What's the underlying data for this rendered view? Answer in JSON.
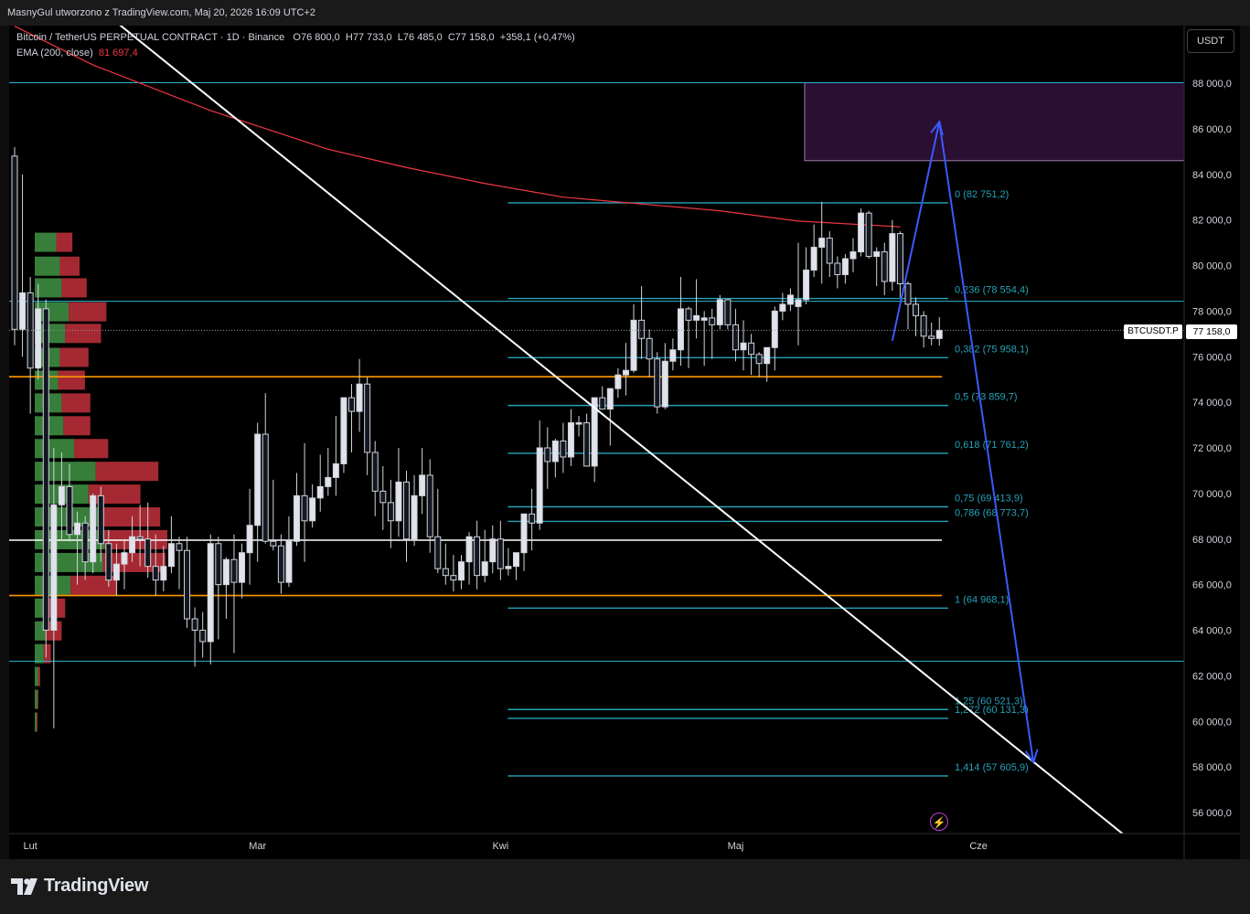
{
  "header": {
    "caption": "MasnyGul utworzono z TradingView.com, Maj 20, 2026 16:09 UTC+2"
  },
  "legend": {
    "symbol": "Bitcoin / TetherUS PERPETUAL CONTRACT · 1D · Binance",
    "open": "O76 800,0",
    "high": "H77 733,0",
    "low": "L76 485,0",
    "close": "C77 158,0",
    "change": "+358,1 (+0,47%)",
    "ema_label": "EMA (200, close)",
    "ema_value": "81 697,4"
  },
  "currency_button": "USDT",
  "last_price": {
    "label": "BTCUSDT.P",
    "value": "77 158,0"
  },
  "footer": {
    "logo_text": "TradingView"
  },
  "colors": {
    "bull": "#e0e3eb",
    "bear": "#131722",
    "ema": "#f23645",
    "fib": "#26a2b8",
    "trend": "#ffffff",
    "horizontal_orange": "#ff9800",
    "horizontal_cyan": "#2bb7d1",
    "projection": "#3a5bff",
    "zone_fill": "#2a0f33",
    "vp_up": "#4caf50",
    "vp_down": "#e53945"
  },
  "chart_data": {
    "type": "candlestick",
    "symbol": "BTCUSDT.P",
    "timeframe": "1D",
    "ylim": [
      55000,
      89500
    ],
    "y_ticks": [
      {
        "v": 88000,
        "t": "88 000,0"
      },
      {
        "v": 86000,
        "t": "86 000,0"
      },
      {
        "v": 84000,
        "t": "84 000,0"
      },
      {
        "v": 82000,
        "t": "82 000,0"
      },
      {
        "v": 80000,
        "t": "80 000,0"
      },
      {
        "v": 78000,
        "t": "78 000,0"
      },
      {
        "v": 76000,
        "t": "76 000,0"
      },
      {
        "v": 74000,
        "t": "74 000,0"
      },
      {
        "v": 72000,
        "t": "72 000,0"
      },
      {
        "v": 70000,
        "t": "70 000,0"
      },
      {
        "v": 68000,
        "t": "68 000,0"
      },
      {
        "v": 66000,
        "t": "66 000,0"
      },
      {
        "v": 64000,
        "t": "64 000,0"
      },
      {
        "v": 62000,
        "t": "62 000,0"
      },
      {
        "v": 60000,
        "t": "60 000,0"
      },
      {
        "v": 58000,
        "t": "58 000,0"
      },
      {
        "v": 56000,
        "t": "56 000,0"
      }
    ],
    "x_ticks": [
      {
        "i": 2,
        "t": "Lut"
      },
      {
        "i": 31,
        "t": "Mar"
      },
      {
        "i": 62,
        "t": "Kwi"
      },
      {
        "i": 92,
        "t": "Maj"
      },
      {
        "i": 123,
        "t": "Cze"
      }
    ],
    "candles": [
      [
        84800,
        85200,
        76500,
        77200
      ],
      [
        77200,
        84000,
        76000,
        78800
      ],
      [
        78800,
        79500,
        73500,
        75500
      ],
      [
        75500,
        79200,
        75000,
        78100
      ],
      [
        78100,
        78500,
        62800,
        64000
      ],
      [
        64000,
        72000,
        59700,
        69500
      ],
      [
        69500,
        71800,
        68000,
        70300
      ],
      [
        70300,
        71300,
        67900,
        68200
      ],
      [
        68200,
        69200,
        66000,
        68700
      ],
      [
        68700,
        69000,
        66200,
        67000
      ],
      [
        67000,
        70000,
        66500,
        69900
      ],
      [
        69900,
        70300,
        67000,
        67800
      ],
      [
        67800,
        68400,
        65900,
        66200
      ],
      [
        66200,
        67800,
        65500,
        66900
      ],
      [
        66900,
        68000,
        65800,
        67400
      ],
      [
        67400,
        69000,
        67000,
        68100
      ],
      [
        68100,
        69500,
        66800,
        68000
      ],
      [
        68000,
        69600,
        66300,
        66800
      ],
      [
        66800,
        68200,
        65500,
        66200
      ],
      [
        66200,
        67700,
        65700,
        66800
      ],
      [
        66800,
        69000,
        66500,
        67800
      ],
      [
        67800,
        68100,
        65800,
        67500
      ],
      [
        67500,
        68100,
        64100,
        64500
      ],
      [
        64500,
        65000,
        62400,
        64000
      ],
      [
        64000,
        64800,
        62800,
        63500
      ],
      [
        63500,
        68200,
        62500,
        67800
      ],
      [
        67800,
        68100,
        63600,
        66000
      ],
      [
        66000,
        67200,
        64500,
        67100
      ],
      [
        67100,
        68200,
        63000,
        66100
      ],
      [
        66100,
        67800,
        65400,
        67400
      ],
      [
        67400,
        70200,
        66000,
        68600
      ],
      [
        68600,
        73100,
        67000,
        72600
      ],
      [
        72600,
        74400,
        67800,
        67900
      ],
      [
        67900,
        70600,
        67500,
        67700
      ],
      [
        67700,
        68200,
        65600,
        66100
      ],
      [
        66100,
        69000,
        65900,
        67900
      ],
      [
        67900,
        70900,
        67700,
        69900
      ],
      [
        69900,
        72200,
        67000,
        68800
      ],
      [
        68800,
        70400,
        68500,
        69800
      ],
      [
        69800,
        71700,
        69200,
        70300
      ],
      [
        70300,
        72000,
        69900,
        70700
      ],
      [
        70700,
        73400,
        69900,
        71300
      ],
      [
        71300,
        74000,
        70900,
        74200
      ],
      [
        74200,
        74800,
        71800,
        73600
      ],
      [
        73600,
        75900,
        72700,
        74800
      ],
      [
        74800,
        75100,
        70800,
        71800
      ],
      [
        71800,
        72300,
        69000,
        70100
      ],
      [
        70100,
        71200,
        68400,
        69600
      ],
      [
        69600,
        70600,
        67600,
        68800
      ],
      [
        68800,
        72000,
        68100,
        70500
      ],
      [
        70500,
        71000,
        67000,
        68000
      ],
      [
        68000,
        70800,
        67700,
        69900
      ],
      [
        69900,
        72000,
        69100,
        70800
      ],
      [
        70800,
        71500,
        67400,
        68100
      ],
      [
        68100,
        70200,
        66500,
        66700
      ],
      [
        66700,
        67800,
        66000,
        66400
      ],
      [
        66400,
        67300,
        65700,
        66200
      ],
      [
        66200,
        67300,
        65800,
        67000
      ],
      [
        67000,
        68300,
        66000,
        68100
      ],
      [
        68100,
        68800,
        65800,
        66400
      ],
      [
        66400,
        68400,
        66100,
        67000
      ],
      [
        67000,
        68600,
        66500,
        68000
      ],
      [
        68000,
        68800,
        66200,
        66700
      ],
      [
        66700,
        67600,
        66400,
        66800
      ],
      [
        66800,
        67400,
        66200,
        67400
      ],
      [
        67400,
        69100,
        66600,
        69100
      ],
      [
        69100,
        70200,
        67500,
        68700
      ],
      [
        68700,
        73200,
        68400,
        72000
      ],
      [
        72000,
        72900,
        70200,
        71400
      ],
      [
        71400,
        72400,
        70700,
        72300
      ],
      [
        72300,
        73100,
        70900,
        71600
      ],
      [
        71600,
        73700,
        71200,
        73100
      ],
      [
        73100,
        73400,
        72500,
        73100
      ],
      [
        73100,
        73500,
        71200,
        71200
      ],
      [
        71200,
        74000,
        70500,
        74200
      ],
      [
        74200,
        74700,
        73700,
        73700
      ],
      [
        73700,
        74600,
        72100,
        74600
      ],
      [
        74600,
        75500,
        74200,
        75200
      ],
      [
        75200,
        76600,
        74300,
        75400
      ],
      [
        75400,
        78300,
        75300,
        77600
      ],
      [
        77600,
        79100,
        75900,
        76800
      ],
      [
        76800,
        77200,
        75100,
        75900
      ],
      [
        75900,
        76200,
        73500,
        73800
      ],
      [
        73800,
        76600,
        73700,
        75800
      ],
      [
        75800,
        76800,
        75400,
        76300
      ],
      [
        76300,
        79500,
        75600,
        78100
      ],
      [
        78100,
        78200,
        75500,
        77600
      ],
      [
        77600,
        79400,
        76800,
        77800
      ],
      [
        77600,
        78000,
        75600,
        77700
      ],
      [
        77700,
        78100,
        75900,
        77400
      ],
      [
        77400,
        78700,
        77200,
        78500
      ],
      [
        78500,
        78500,
        77200,
        77400
      ],
      [
        77400,
        78100,
        75800,
        76300
      ],
      [
        76300,
        77600,
        75400,
        76600
      ],
      [
        76600,
        77000,
        75200,
        76100
      ],
      [
        76100,
        76200,
        75100,
        75700
      ],
      [
        75700,
        76400,
        74900,
        76400
      ],
      [
        76400,
        78200,
        75400,
        78000
      ],
      [
        78000,
        78800,
        77600,
        78300
      ],
      [
        78300,
        79000,
        78000,
        78700
      ],
      [
        78200,
        81000,
        76500,
        78500
      ],
      [
        78500,
        80800,
        78300,
        79800
      ],
      [
        79800,
        81800,
        79500,
        80800
      ],
      [
        80800,
        82800,
        79200,
        81200
      ],
      [
        81200,
        81500,
        79500,
        80100
      ],
      [
        80100,
        80400,
        79000,
        79600
      ],
      [
        79600,
        80500,
        79200,
        80300
      ],
      [
        80300,
        81200,
        79700,
        80600
      ],
      [
        80600,
        82500,
        80400,
        82300
      ],
      [
        82300,
        82400,
        80300,
        80400
      ],
      [
        80400,
        80800,
        79100,
        80600
      ],
      [
        80600,
        81000,
        78700,
        79300
      ],
      [
        79300,
        82000,
        78900,
        81400
      ],
      [
        81400,
        81500,
        78600,
        79200
      ],
      [
        79200,
        79300,
        77200,
        78300
      ],
      [
        78300,
        78600,
        76900,
        77800
      ],
      [
        77800,
        78000,
        76400,
        76900
      ],
      [
        76900,
        77500,
        76500,
        76800
      ],
      [
        76800,
        77733,
        76485,
        77158
      ]
    ],
    "ema200": [
      [
        0,
        90500
      ],
      [
        10,
        88800
      ],
      [
        25,
        86800
      ],
      [
        40,
        85100
      ],
      [
        50,
        84300
      ],
      [
        60,
        83600
      ],
      [
        70,
        83000
      ],
      [
        80,
        82700
      ],
      [
        90,
        82400
      ],
      [
        100,
        81950
      ],
      [
        113,
        81697.4
      ]
    ],
    "fibonacci": [
      {
        "label": "0 (82 751,2)",
        "price": 82751.2
      },
      {
        "label": "0,236 (78 554,4)",
        "price": 78554.4
      },
      {
        "label": "0,382 (75 958,1)",
        "price": 75958.1
      },
      {
        "label": "0,5 (73 859,7)",
        "price": 73859.7
      },
      {
        "label": "0,618 (71 761,2)",
        "price": 71761.2
      },
      {
        "label": "0,75 (69 413,9)",
        "price": 69413.9
      },
      {
        "label": "0,786 (68 773,7)",
        "price": 68773.7
      },
      {
        "label": "1 (64 968,1)",
        "price": 64968.1
      },
      {
        "label": "1,25 (60 521,3)",
        "price": 60521.3
      },
      {
        "label": "1,272 (60 131,3)",
        "price": 60131.3
      },
      {
        "label": "1,414 (57 605,9)",
        "price": 57605.9
      }
    ],
    "horizontal_levels": [
      {
        "price": 88020,
        "color": "cyan",
        "span": "full"
      },
      {
        "price": 78430,
        "color": "cyan",
        "span": "full"
      },
      {
        "price": 75120,
        "color": "orange",
        "span": "to-fib"
      },
      {
        "price": 67950,
        "color": "white",
        "span": "to-fib"
      },
      {
        "price": 65520,
        "color": "orange",
        "span": "to-fib"
      },
      {
        "price": 62640,
        "color": "cyan",
        "span": "full"
      }
    ],
    "supply_zone": {
      "price_top": 88020,
      "price_bottom": 84600
    },
    "trendline": {
      "start": {
        "i": 1,
        "price": 94000
      },
      "end": {
        "i": 142,
        "price": 54900
      }
    },
    "projection": [
      {
        "i": 112,
        "price": 76700
      },
      {
        "i": 118,
        "price": 86300
      },
      {
        "i": 130,
        "price": 58200
      }
    ],
    "volume_profile": [
      {
        "price": 81000,
        "up": 24,
        "down": 18
      },
      {
        "price": 79950,
        "up": 28,
        "down": 22
      },
      {
        "price": 79000,
        "up": 30,
        "down": 28
      },
      {
        "price": 77950,
        "up": 38,
        "down": 42
      },
      {
        "price": 77000,
        "up": 34,
        "down": 40
      },
      {
        "price": 75950,
        "up": 28,
        "down": 32
      },
      {
        "price": 74950,
        "up": 26,
        "down": 30
      },
      {
        "price": 73950,
        "up": 30,
        "down": 32
      },
      {
        "price": 72950,
        "up": 32,
        "down": 30
      },
      {
        "price": 71950,
        "up": 44,
        "down": 38
      },
      {
        "price": 70950,
        "up": 68,
        "down": 70
      },
      {
        "price": 69950,
        "up": 60,
        "down": 58
      },
      {
        "price": 68950,
        "up": 74,
        "down": 66
      },
      {
        "price": 67950,
        "up": 78,
        "down": 70
      },
      {
        "price": 66950,
        "up": 76,
        "down": 70
      },
      {
        "price": 65950,
        "up": 40,
        "down": 52
      },
      {
        "price": 64950,
        "up": 14,
        "down": 20
      },
      {
        "price": 63950,
        "up": 12,
        "down": 18
      },
      {
        "price": 62950,
        "up": 10,
        "down": 8
      },
      {
        "price": 61950,
        "up": 4,
        "down": 2
      },
      {
        "price": 60950,
        "up": 3,
        "down": 1
      },
      {
        "price": 59950,
        "up": 2,
        "down": 1
      }
    ]
  }
}
